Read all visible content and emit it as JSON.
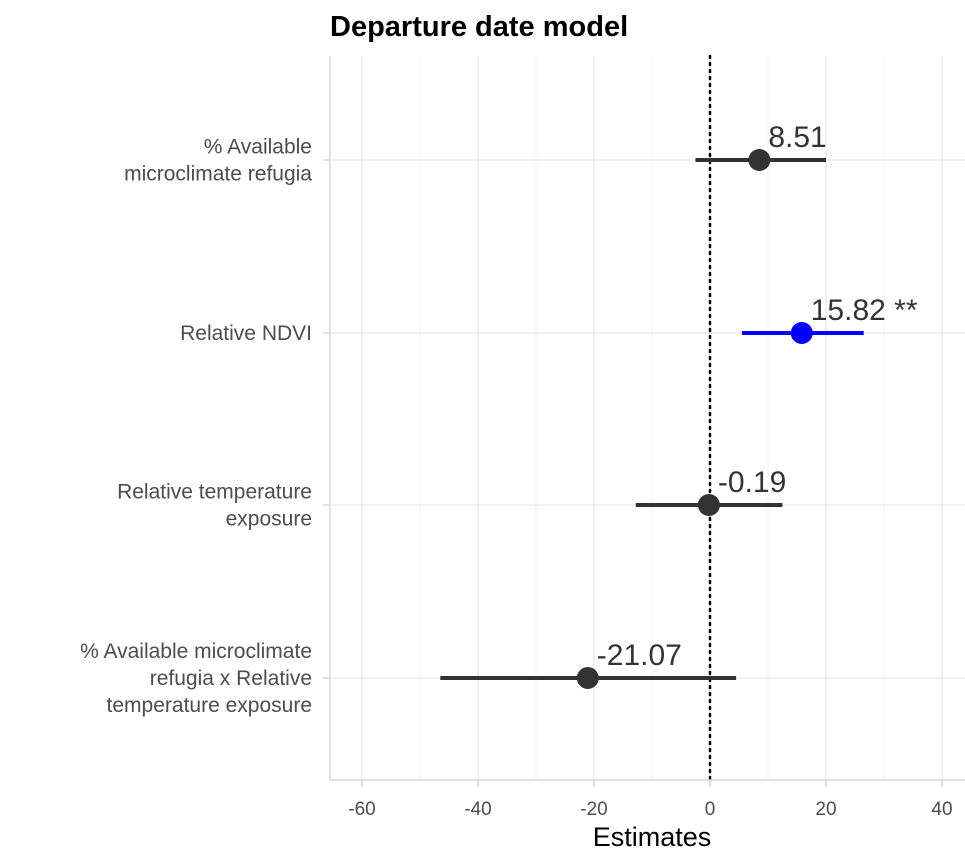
{
  "chart_data": {
    "type": "dot-whisker",
    "title": "Departure date model",
    "xlabel": "Estimates",
    "ylabel": "",
    "xlim": [
      -65,
      44
    ],
    "xticks": [
      -60,
      -40,
      -20,
      0,
      20,
      40
    ],
    "xtick_labels": [
      "-60",
      "-40",
      "-20",
      "0",
      "20",
      "40"
    ],
    "reference_line": {
      "x": 0,
      "style": "dotted"
    },
    "grid": true,
    "colors": {
      "default": "#333333",
      "significant": "#0000ff"
    },
    "terms": [
      {
        "label_lines": [
          "% Available",
          "microclimate refugia"
        ],
        "estimate": 8.51,
        "ci_low": -2.5,
        "ci_high": 20,
        "label": "8.51",
        "significant": false
      },
      {
        "label_lines": [
          "Relative NDVI"
        ],
        "estimate": 15.82,
        "ci_low": 5.5,
        "ci_high": 26.5,
        "label": "15.82 **",
        "significant": true
      },
      {
        "label_lines": [
          "Relative temperature",
          "exposure"
        ],
        "estimate": -0.19,
        "ci_low": -12.8,
        "ci_high": 12.5,
        "label": "-0.19",
        "significant": false
      },
      {
        "label_lines": [
          "% Available microclimate",
          "refugia x Relative",
          "temperature exposure"
        ],
        "estimate": -21.07,
        "ci_low": -46.5,
        "ci_high": 4.5,
        "label": "-21.07",
        "significant": false
      }
    ]
  }
}
